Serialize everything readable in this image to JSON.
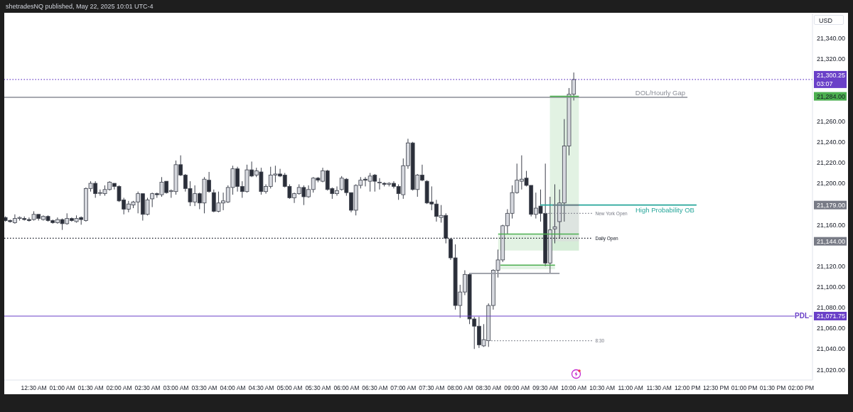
{
  "chart_data": {
    "type": "candlestick",
    "ylabel": "USD",
    "annotations": [
      "shetradesNQ published, May 22, 2025 10:01 UTC-4"
    ],
    "x": [
      0,
      0.0833,
      0.1667,
      0.25,
      0.3333,
      0.4167,
      0.5,
      0.5833,
      0.6667,
      0.75,
      0.8333,
      0.9167,
      1,
      1.0833,
      1.1667,
      1.25,
      1.3333,
      1.4167,
      1.5,
      1.5833,
      1.6667,
      1.75,
      1.8333,
      1.9167,
      2,
      2.0833,
      2.1667,
      2.25,
      2.3333,
      2.4167,
      2.5,
      2.5833,
      2.6667,
      2.75,
      2.8333,
      2.9167,
      3,
      3.0833,
      3.1667,
      3.25,
      3.3333,
      3.4167,
      3.5,
      3.5833,
      3.6667,
      3.75,
      3.8333,
      3.9167,
      4,
      4.0833,
      4.1667,
      4.25,
      4.3333,
      4.4167,
      4.5,
      4.5833,
      4.6667,
      4.75,
      4.8333,
      4.9167,
      5,
      5.0833,
      5.1667,
      5.25,
      5.3333,
      5.4167,
      5.5,
      5.5833,
      5.6667,
      5.75,
      5.8333,
      5.9167,
      6,
      6.0833,
      6.1667,
      6.25,
      6.3333,
      6.4167,
      6.5,
      6.5833,
      6.6667,
      6.75,
      6.8333,
      6.9167,
      7,
      7.0833,
      7.1667,
      7.25,
      7.3333,
      7.4167,
      7.5,
      7.5833,
      7.6667,
      7.75,
      7.8333,
      7.9167,
      8,
      8.0833,
      8.1667,
      8.25,
      8.3333,
      8.4167,
      8.5,
      8.5833,
      8.6667,
      8.75,
      8.8333,
      8.9167,
      9,
      9.0833,
      9.1667,
      9.25,
      9.3333,
      9.4167,
      9.5,
      9.5833,
      9.6667,
      9.75,
      9.8333,
      9.9167,
      10
    ],
    "ohlc": [
      [
        21167,
        21168,
        21163,
        21164
      ],
      [
        21164,
        21165,
        21162,
        21163
      ],
      [
        21162,
        21170,
        21161,
        21166
      ],
      [
        21166,
        21168,
        21164,
        21167
      ],
      [
        21166,
        21168,
        21164,
        21165
      ],
      [
        21165,
        21167,
        21163,
        21164
      ],
      [
        21165,
        21173,
        21164,
        21170
      ],
      [
        21170,
        21170,
        21164,
        21166
      ],
      [
        21165,
        21169,
        21164,
        21168
      ],
      [
        21168,
        21169,
        21163,
        21164
      ],
      [
        21164,
        21165,
        21161,
        21162
      ],
      [
        21162,
        21167,
        21161,
        21165
      ],
      [
        21165,
        21166,
        21155,
        21161
      ],
      [
        21161,
        21171,
        21160,
        21166
      ],
      [
        21166,
        21167,
        21163,
        21164
      ],
      [
        21163,
        21169,
        21162,
        21166
      ],
      [
        21167,
        21168,
        21160,
        21165
      ],
      [
        21164,
        21196,
        21163,
        21195
      ],
      [
        21195,
        21202,
        21192,
        21200
      ],
      [
        21200,
        21202,
        21186,
        21190
      ],
      [
        21191,
        21194,
        21188,
        21191
      ],
      [
        21190,
        21198,
        21188,
        21194
      ],
      [
        21194,
        21202,
        21193,
        21201
      ],
      [
        21200,
        21200,
        21194,
        21197
      ],
      [
        21197,
        21198,
        21182,
        21183
      ],
      [
        21184,
        21186,
        21170,
        21175
      ],
      [
        21175,
        21183,
        21172,
        21180
      ],
      [
        21179,
        21183,
        21176,
        21182
      ],
      [
        21182,
        21192,
        21171,
        21190
      ],
      [
        21190,
        21190,
        21164,
        21170
      ],
      [
        21170,
        21186,
        21169,
        21184
      ],
      [
        21185,
        21191,
        21177,
        21190
      ],
      [
        21190,
        21191,
        21186,
        21189
      ],
      [
        21189,
        21206,
        21187,
        21201
      ],
      [
        21202,
        21202,
        21190,
        21191
      ],
      [
        21192,
        21194,
        21186,
        21193
      ],
      [
        21192,
        21222,
        21189,
        21218
      ],
      [
        21218,
        21227,
        21207,
        21208
      ],
      [
        21208,
        21209,
        21192,
        21195
      ],
      [
        21195,
        21202,
        21178,
        21182
      ],
      [
        21182,
        21198,
        21178,
        21190
      ],
      [
        21190,
        21191,
        21175,
        21181
      ],
      [
        21181,
        21206,
        21171,
        21204
      ],
      [
        21203,
        21211,
        21191,
        21192
      ],
      [
        21191,
        21194,
        21172,
        21173
      ],
      [
        21173,
        21192,
        21172,
        21181
      ],
      [
        21181,
        21191,
        21174,
        21183
      ],
      [
        21182,
        21198,
        21181,
        21196
      ],
      [
        21196,
        21217,
        21189,
        21214
      ],
      [
        21214,
        21216,
        21192,
        21197
      ],
      [
        21197,
        21202,
        21186,
        21192
      ],
      [
        21192,
        21218,
        21191,
        21213
      ],
      [
        21213,
        21221,
        21206,
        21207
      ],
      [
        21208,
        21215,
        21206,
        21212
      ],
      [
        21211,
        21215,
        21189,
        21192
      ],
      [
        21192,
        21199,
        21190,
        21197
      ],
      [
        21197,
        21216,
        21195,
        21208
      ],
      [
        21208,
        21217,
        21201,
        21209
      ],
      [
        21209,
        21214,
        21206,
        21207
      ],
      [
        21208,
        21210,
        21196,
        21197
      ],
      [
        21197,
        21199,
        21185,
        21186
      ],
      [
        21186,
        21191,
        21181,
        21190
      ],
      [
        21190,
        21199,
        21189,
        21196
      ],
      [
        21196,
        21198,
        21179,
        21187
      ],
      [
        21187,
        21198,
        21186,
        21194
      ],
      [
        21194,
        21206,
        21191,
        21205
      ],
      [
        21205,
        21206,
        21201,
        21203
      ],
      [
        21202,
        21215,
        21201,
        21212
      ],
      [
        21212,
        21213,
        21193,
        21194
      ],
      [
        21195,
        21196,
        21185,
        21190
      ],
      [
        21190,
        21197,
        21188,
        21193
      ],
      [
        21194,
        21207,
        21193,
        21205
      ],
      [
        21204,
        21205,
        21188,
        21191
      ],
      [
        21191,
        21191,
        21172,
        21174
      ],
      [
        21174,
        21199,
        21169,
        21198
      ],
      [
        21198,
        21206,
        21195,
        21203
      ],
      [
        21204,
        21206,
        21197,
        21203
      ],
      [
        21202,
        21210,
        21192,
        21207
      ],
      [
        21208,
        21209,
        21192,
        21202
      ],
      [
        21201,
        21205,
        21194,
        21201
      ],
      [
        21200,
        21201,
        21197,
        21199
      ],
      [
        21199,
        21201,
        21197,
        21200
      ],
      [
        21200,
        21202,
        21195,
        21197
      ],
      [
        21197,
        21199,
        21184,
        21190
      ],
      [
        21189,
        21224,
        21185,
        21217
      ],
      [
        21217,
        21243,
        21214,
        21239
      ],
      [
        21239,
        21240,
        21193,
        21194
      ],
      [
        21194,
        21209,
        21187,
        21208
      ],
      [
        21208,
        21218,
        21202,
        21203
      ],
      [
        21202,
        21203,
        21180,
        21181
      ],
      [
        21182,
        21197,
        21174,
        21180
      ],
      [
        21180,
        21184,
        21163,
        21168
      ],
      [
        21167,
        21179,
        21162,
        21169
      ],
      [
        21169,
        21171,
        21142,
        21147
      ],
      [
        21146,
        21147,
        21126,
        21128
      ],
      [
        21128,
        21141,
        21078,
        21082
      ],
      [
        21082,
        21102,
        21070,
        21095
      ],
      [
        21095,
        21116,
        21092,
        21112
      ],
      [
        21112,
        21113,
        21064,
        21069
      ],
      [
        21069,
        21071,
        21040,
        21062
      ],
      [
        21062,
        21071,
        21041,
        21044
      ],
      [
        21043,
        21064,
        21042,
        21049
      ],
      [
        21048,
        21084,
        21042,
        21082
      ],
      [
        21082,
        21117,
        21078,
        21116
      ],
      [
        21116,
        21136,
        21109,
        21126
      ],
      [
        21126,
        21160,
        21124,
        21159
      ],
      [
        21159,
        21175,
        21151,
        21171
      ],
      [
        21171,
        21198,
        21166,
        21191
      ],
      [
        21191,
        21219,
        21190,
        21203
      ],
      [
        21202,
        21227,
        21194,
        21204
      ],
      [
        21205,
        21212,
        21197,
        21198
      ],
      [
        21198,
        21198,
        21168,
        21170
      ],
      [
        21170,
        21191,
        21166,
        21176
      ],
      [
        21178,
        21194,
        21163,
        21171
      ],
      [
        21171,
        21219,
        21120,
        21123
      ],
      [
        21123,
        21187,
        21113,
        21155
      ],
      [
        21156,
        21199,
        21142,
        21158
      ],
      [
        21163,
        21194,
        21147,
        21181
      ],
      [
        21181,
        21262,
        21163,
        21236
      ],
      [
        21236,
        21292,
        21227,
        21286
      ],
      [
        21286,
        21307,
        21280,
        21300.25
      ]
    ],
    "series": [
      {
        "type": "line",
        "color": "#4caf50",
        "x": [
          9.58,
          10.09
        ],
        "values": [
          21284,
          21284
        ],
        "lower": [
          21135,
          21135
        ],
        "upper": [
          21284,
          21284
        ]
      },
      {
        "type": "line",
        "color": "#4caf50",
        "x": [
          8.67,
          10.09
        ],
        "values": [
          21151,
          21151
        ],
        "lower": [
          21135,
          21135
        ],
        "upper": [
          21151,
          21151
        ]
      },
      {
        "type": "line",
        "color": "#4caf50",
        "x": [
          8.71,
          9.67
        ],
        "values": [
          21121,
          21121
        ],
        "lower": [
          21117,
          21117
        ],
        "upper": [
          21121,
          21121
        ]
      },
      {
        "type": "line",
        "color": "#787b86",
        "x": [
          9.63,
          10.09
        ],
        "values": [
          21179,
          21179
        ],
        "lower": [
          21144,
          21144
        ],
        "upper": [
          21179,
          21179
        ]
      },
      {
        "type": "line",
        "name": "DOL/Hourly Gap",
        "color": "#8a8d96",
        "x": [
          -0.02,
          12.0
        ],
        "values": [
          21283,
          21283
        ]
      },
      {
        "type": "line",
        "name": "High Probability OB",
        "color": "#26a69a",
        "x": [
          9.41,
          12.16
        ],
        "values": [
          21179,
          21179
        ]
      },
      {
        "type": "line",
        "name": "New York Open",
        "color": "#787b86",
        "line_style": "dotted",
        "x": [
          9.5,
          10.33
        ],
        "values": [
          21171,
          21171
        ]
      },
      {
        "type": "line",
        "name": "Daily Open",
        "color": "#131722",
        "line_style": "dotted",
        "x": [
          -0.02,
          10.33
        ],
        "values": [
          21147,
          21147
        ]
      },
      {
        "type": "line",
        "name": "8:30",
        "color": "#787b86",
        "line_style": "dotted",
        "x": [
          8.5,
          10.33
        ],
        "values": [
          21048,
          21048
        ]
      },
      {
        "type": "line",
        "color": "#9598a1",
        "x": [
          8.16,
          9.75
        ],
        "values": [
          21113,
          21113
        ]
      }
    ],
    "ref_lines": [
      {
        "axis": "y",
        "value": 21300.25,
        "color": "#6a40c8",
        "line_style": "dotted"
      },
      {
        "axis": "y",
        "value": 21071.75,
        "label": "PDL",
        "color": "#6a40c8"
      }
    ],
    "xlim": [
      -0.02,
      14.2
    ],
    "xticks": [
      {
        "value": 0.5,
        "label": "12:30 AM"
      },
      {
        "value": 1,
        "label": "01:00 AM"
      },
      {
        "value": 1.5,
        "label": "01:30 AM"
      },
      {
        "value": 2,
        "label": "02:00 AM"
      },
      {
        "value": 2.5,
        "label": "02:30 AM"
      },
      {
        "value": 3,
        "label": "03:00 AM"
      },
      {
        "value": 3.5,
        "label": "03:30 AM"
      },
      {
        "value": 4,
        "label": "04:00 AM"
      },
      {
        "value": 4.5,
        "label": "04:30 AM"
      },
      {
        "value": 5,
        "label": "05:00 AM"
      },
      {
        "value": 5.5,
        "label": "05:30 AM"
      },
      {
        "value": 6,
        "label": "06:00 AM"
      },
      {
        "value": 6.5,
        "label": "06:30 AM"
      },
      {
        "value": 7,
        "label": "07:00 AM"
      },
      {
        "value": 7.5,
        "label": "07:30 AM"
      },
      {
        "value": 8,
        "label": "08:00 AM"
      },
      {
        "value": 8.5,
        "label": "08:30 AM"
      },
      {
        "value": 9,
        "label": "09:00 AM"
      },
      {
        "value": 9.5,
        "label": "09:30 AM"
      },
      {
        "value": 10,
        "label": "10:00 AM"
      },
      {
        "value": 10.5,
        "label": "10:30 AM"
      },
      {
        "value": 11,
        "label": "11:00 AM"
      },
      {
        "value": 11.5,
        "label": "11:30 AM"
      },
      {
        "value": 12,
        "label": "12:00 PM"
      },
      {
        "value": 12.5,
        "label": "12:30 PM"
      },
      {
        "value": 13,
        "label": "01:00 PM"
      },
      {
        "value": 13.5,
        "label": "01:30 PM"
      },
      {
        "value": 14,
        "label": "02:00 PM"
      }
    ],
    "ylim": [
      21010,
      21364
    ],
    "yticks": [
      {
        "value": 21020,
        "label": "21,020.00"
      },
      {
        "value": 21040,
        "label": "21,040.00"
      },
      {
        "value": 21060,
        "label": "21,060.00"
      },
      {
        "value": 21080,
        "label": "21,080.00"
      },
      {
        "value": 21100,
        "label": "21,100.00"
      },
      {
        "value": 21120,
        "label": "21,120.00"
      },
      {
        "value": 21160,
        "label": "21,160.00"
      },
      {
        "value": 21200,
        "label": "21,200.00"
      },
      {
        "value": 21220,
        "label": "21,220.00"
      },
      {
        "value": 21240,
        "label": "21,240.00"
      },
      {
        "value": 21260,
        "label": "21,260.00"
      },
      {
        "value": 21320,
        "label": "21,320.00"
      },
      {
        "value": 21340,
        "label": "21,340.00"
      },
      {
        "value": 21071.75,
        "label": "21,071.75"
      },
      {
        "value": 21144,
        "label": "21,144.00"
      },
      {
        "value": 21179,
        "label": "21,179.00"
      },
      {
        "value": 21284,
        "label": "21,284.00"
      },
      {
        "value": 21300.25,
        "label": "21,300.25\n03:07"
      }
    ]
  }
}
